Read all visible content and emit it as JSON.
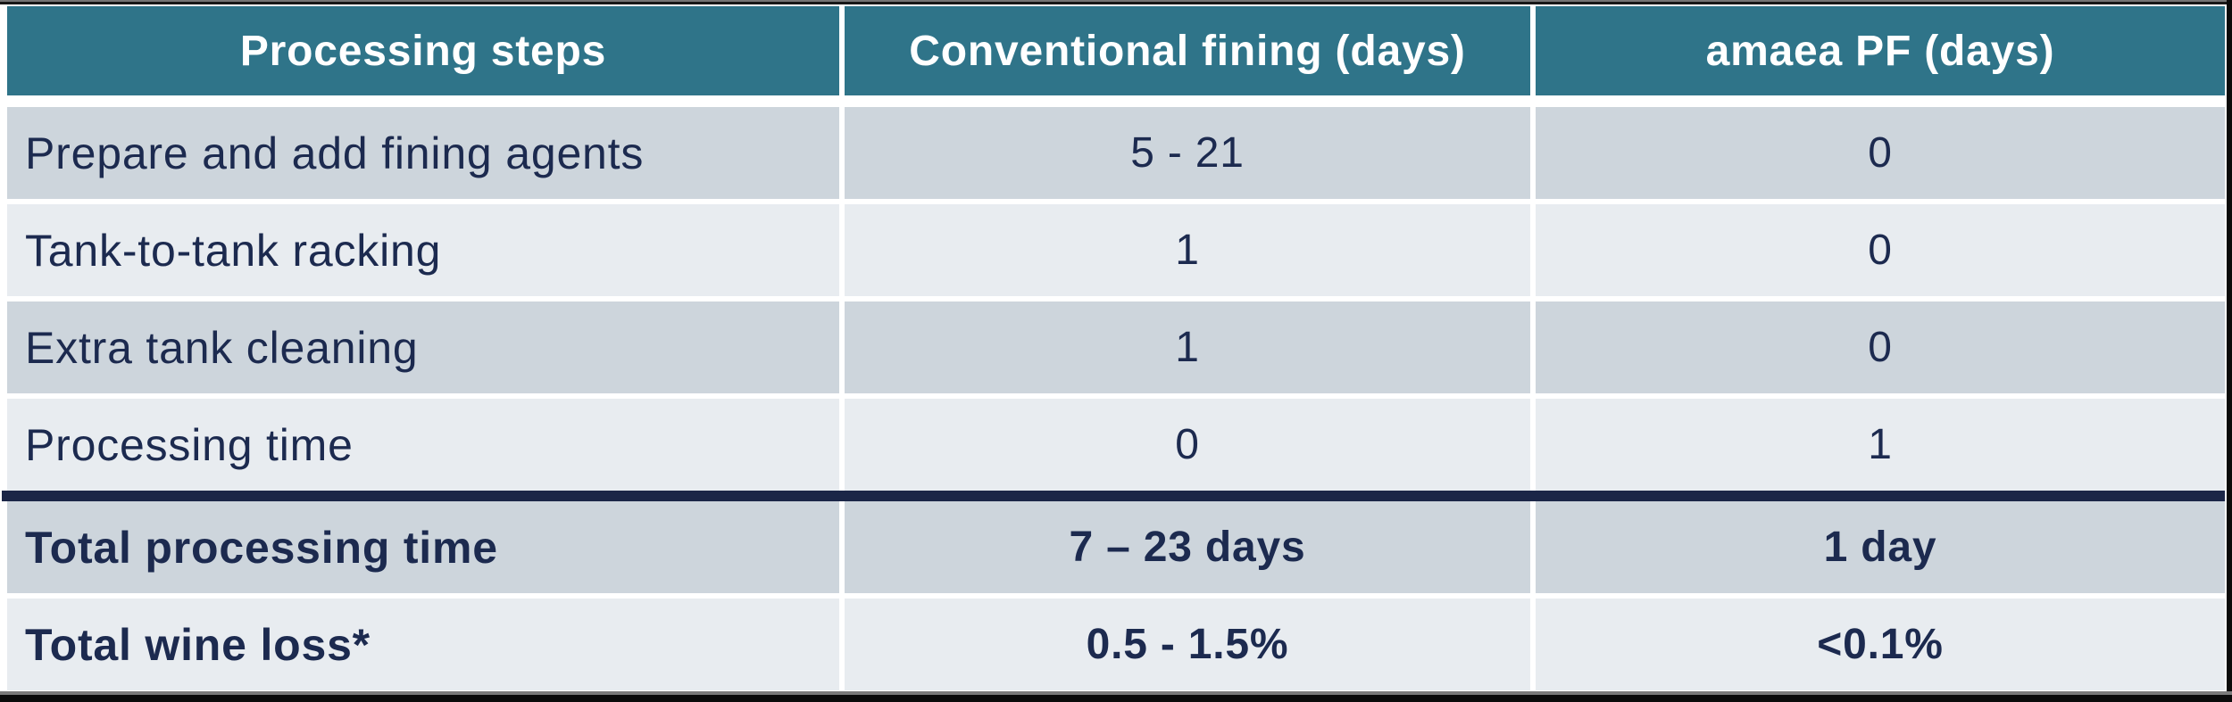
{
  "chart_data": {
    "type": "table",
    "columns": [
      "Processing steps",
      "Conventional fining (days)",
      "amaea PF (days)"
    ],
    "rows": [
      [
        "Prepare and add fining agents",
        "5 - 21",
        "0"
      ],
      [
        "Tank-to-tank racking",
        "1",
        "0"
      ],
      [
        "Extra tank cleaning",
        "1",
        "0"
      ],
      [
        "Processing time",
        "0",
        "1"
      ],
      [
        "Total processing time",
        "7 – 23 days",
        "1 day"
      ],
      [
        "Total wine loss*",
        "0.5 - 1.5%",
        "<0.1%"
      ]
    ],
    "bold_row_indices": [
      4,
      5
    ],
    "separator_before_row_index": 4,
    "title": ""
  },
  "colors": {
    "header_bg": "#2F7489",
    "row_dark": "#CDD5DC",
    "row_light": "#E8ECF0",
    "text_navy": "#1C2A4F",
    "separator": "#1B2647",
    "header_text": "#FFFFFF",
    "edge_black": "#0B0B0B",
    "edge_gray": "#757575"
  }
}
